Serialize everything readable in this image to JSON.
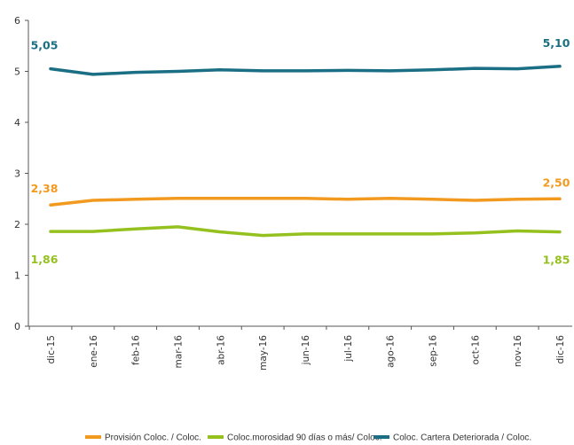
{
  "chart_data": {
    "type": "line",
    "categories": [
      "dic-15",
      "ene-16",
      "feb-16",
      "mar-16",
      "abr-16",
      "may-16",
      "jun-16",
      "jul-16",
      "ago-16",
      "sep-16",
      "oct-16",
      "nov-16",
      "dic-16"
    ],
    "ylim": [
      0,
      6
    ],
    "yticks": [
      "0",
      "1",
      "2",
      "3",
      "4",
      "5",
      "6"
    ],
    "grid": false,
    "legend_position": "bottom",
    "series": [
      {
        "name": "Provisión Coloc. / Coloc.",
        "color": "#F29A1F",
        "values": [
          2.38,
          2.47,
          2.49,
          2.51,
          2.51,
          2.51,
          2.51,
          2.49,
          2.51,
          2.49,
          2.47,
          2.49,
          2.5
        ],
        "first_label": "2,38",
        "last_label": "2,50"
      },
      {
        "name": "Coloc.morosidad 90 días o más/ Coloc.",
        "color": "#95C11F",
        "values": [
          1.86,
          1.86,
          1.91,
          1.95,
          1.85,
          1.78,
          1.81,
          1.81,
          1.81,
          1.81,
          1.83,
          1.87,
          1.85
        ],
        "first_label": "1,86",
        "last_label": "1,85"
      },
      {
        "name": "Coloc. Cartera Deteriorada / Coloc.",
        "color": "#1B6F84",
        "values": [
          5.05,
          4.94,
          4.98,
          5.0,
          5.03,
          5.01,
          5.01,
          5.02,
          5.01,
          5.03,
          5.06,
          5.05,
          5.1
        ],
        "first_label": "5,05",
        "last_label": "5,10"
      }
    ]
  }
}
